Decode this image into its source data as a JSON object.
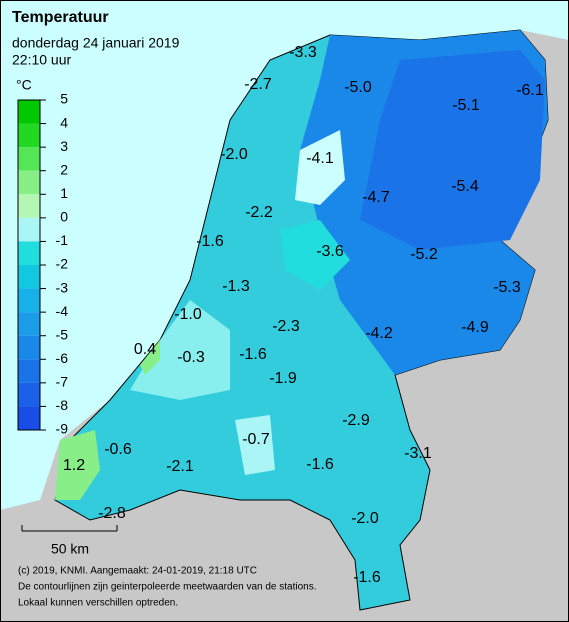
{
  "header": {
    "title": "Temperatuur",
    "date": "donderdag 24 januari 2019",
    "time": "22:10 uur"
  },
  "legend": {
    "unit": "°C",
    "ticks": [
      5,
      4,
      3,
      2,
      1,
      0,
      -1,
      -2,
      -3,
      -4,
      -5,
      -6,
      -7,
      -8,
      -9
    ],
    "band_colors": [
      "#00c800",
      "#22d822",
      "#55e655",
      "#88ef88",
      "#b4f7b4",
      "#aaf5f5",
      "#22dddd",
      "#11c8e0",
      "#18b0e8",
      "#1a9ce8",
      "#1a88e8",
      "#1a74e8",
      "#1a60e8",
      "#1a4ce8"
    ]
  },
  "stations": [
    "-3.3",
    "-2.7",
    "-5.0",
    "-5.1",
    "-6.1",
    "-2.0",
    "-4.1",
    "-4.7",
    "-5.4",
    "-2.2",
    "-1.6",
    "-3.6",
    "-5.2",
    "-5.3",
    "-1.3",
    "-1.0",
    "-2.3",
    "-4.2",
    "-4.9",
    "0.4",
    "-0.3",
    "-1.6",
    "-1.9",
    "-2.9",
    "-0.7",
    "-3.1",
    "-0.6",
    "-2.1",
    "-1.6",
    "1.2",
    "-2.8",
    "-2.0",
    "-1.6"
  ],
  "scale": "50 km",
  "footer": [
    "(c) 2019, KNMI. Aangemaakt: 24-01-2019, 21:18 UTC",
    "De contourlijnen zijn geinterpoleerde meetwaarden van de stations.",
    "Lokaal kunnen verschillen optreden."
  ]
}
